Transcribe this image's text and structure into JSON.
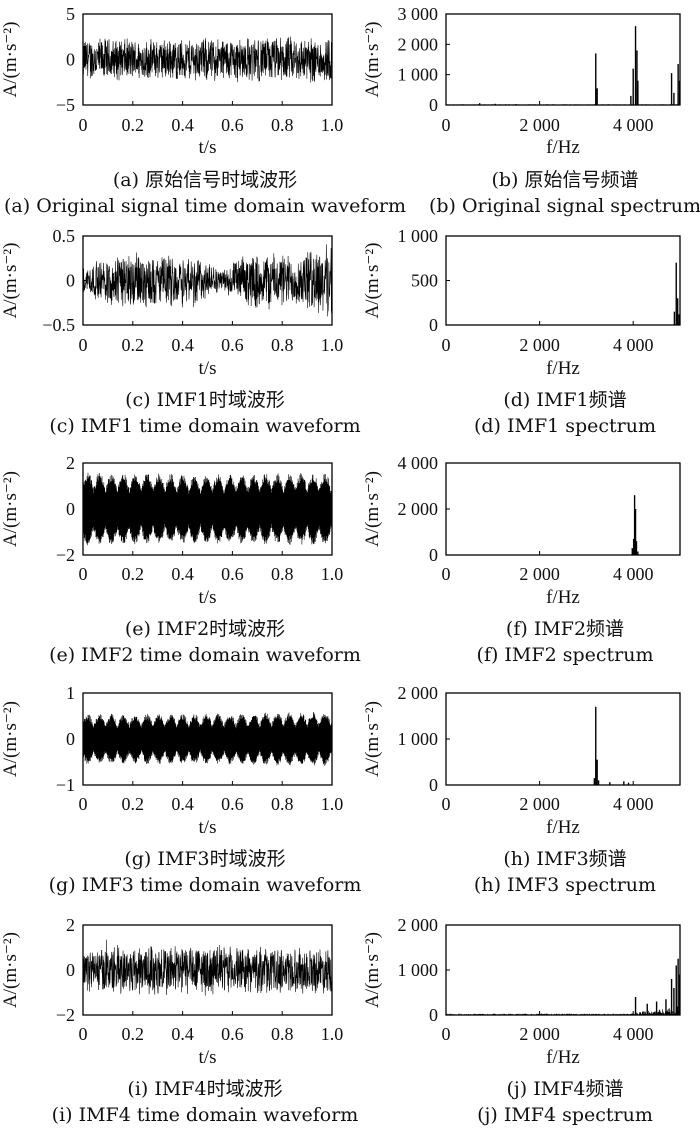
{
  "chart_data": [
    {
      "id": "a",
      "type": "line",
      "domain": "time",
      "xlabel": "t/s",
      "ylabel": "A/(m·s⁻²)",
      "xlim": [
        0,
        1
      ],
      "ylim": [
        -5,
        5
      ],
      "xticks": [
        0,
        0.2,
        0.4,
        0.6,
        0.8,
        1.0
      ],
      "xtick_labels": [
        "0",
        "0.2",
        "0.4",
        "0.6",
        "0.8",
        "1.0"
      ],
      "yticks": [
        -5,
        0,
        5
      ],
      "ytick_labels": [
        "−5",
        "0",
        "5"
      ],
      "series": [
        {
          "envelope": [
            [
              0,
              2.6
            ],
            [
              0.25,
              2.4
            ],
            [
              0.5,
              2.6
            ],
            [
              0.75,
              2.7
            ],
            [
              1.0,
              2.8
            ]
          ],
          "style": "noise"
        }
      ],
      "caption_zh": "(a) 原始信号时域波形",
      "caption_en": "(a) Original signal time domain waveform"
    },
    {
      "id": "b",
      "type": "bar",
      "domain": "frequency",
      "xlabel": "f/Hz",
      "ylabel": "A/(m·s⁻²)",
      "xlim": [
        0,
        5000
      ],
      "ylim": [
        0,
        3000
      ],
      "xticks": [
        0,
        2000,
        4000
      ],
      "xtick_labels": [
        "0",
        "2 000",
        "4 000"
      ],
      "yticks": [
        0,
        1000,
        2000,
        3000
      ],
      "ytick_labels": [
        "0",
        "1 000",
        "2 000",
        "3 000"
      ],
      "series": [
        {
          "peaks": [
            [
              720,
              60
            ],
            [
              1050,
              40
            ],
            [
              1500,
              30
            ],
            [
              3200,
              1700
            ],
            [
              3230,
              550
            ],
            [
              3950,
              300
            ],
            [
              4000,
              1200
            ],
            [
              4050,
              2600
            ],
            [
              4080,
              1800
            ],
            [
              4100,
              800
            ],
            [
              4820,
              1050
            ],
            [
              4870,
              400
            ],
            [
              4960,
              1350
            ],
            [
              4990,
              800
            ]
          ],
          "noise_floor": 25
        }
      ],
      "caption_zh": "(b) 原始信号频谱",
      "caption_en": "(b) Original signal spectrum"
    },
    {
      "id": "c",
      "type": "line",
      "domain": "time",
      "xlabel": "t/s",
      "ylabel": "A/(m·s⁻²)",
      "xlim": [
        0,
        1
      ],
      "ylim": [
        -0.5,
        0.5
      ],
      "xticks": [
        0,
        0.2,
        0.4,
        0.6,
        0.8,
        1.0
      ],
      "xtick_labels": [
        "0",
        "0.2",
        "0.4",
        "0.6",
        "0.8",
        "1.0"
      ],
      "yticks": [
        -0.5,
        0,
        0.5
      ],
      "ytick_labels": [
        "−0.5",
        "0",
        "0.5"
      ],
      "series": [
        {
          "envelope": [
            [
              0,
              0.15
            ],
            [
              0.1,
              0.3
            ],
            [
              0.2,
              0.35
            ],
            [
              0.3,
              0.3
            ],
            [
              0.45,
              0.33
            ],
            [
              0.55,
              0.12
            ],
            [
              0.65,
              0.3
            ],
            [
              0.75,
              0.35
            ],
            [
              0.85,
              0.3
            ],
            [
              0.95,
              0.42
            ],
            [
              1.0,
              0.45
            ]
          ],
          "style": "noise"
        }
      ],
      "caption_zh": "(c) IMF1时域波形",
      "caption_en": "(c) IMF1 time domain waveform"
    },
    {
      "id": "d",
      "type": "bar",
      "domain": "frequency",
      "xlabel": "f/Hz",
      "ylabel": "A/(m·s⁻²)",
      "xlim": [
        0,
        5000
      ],
      "ylim": [
        0,
        1000
      ],
      "xticks": [
        0,
        2000,
        4000
      ],
      "xtick_labels": [
        "0",
        "2 000",
        "4 000"
      ],
      "yticks": [
        0,
        500,
        1000
      ],
      "ytick_labels": [
        "0",
        "500",
        "1 000"
      ],
      "series": [
        {
          "peaks": [
            [
              4880,
              150
            ],
            [
              4920,
              700
            ],
            [
              4950,
              300
            ],
            [
              4980,
              120
            ]
          ],
          "noise_floor": 3
        }
      ],
      "caption_zh": "(d) IMF1频谱",
      "caption_en": "(d) IMF1 spectrum"
    },
    {
      "id": "e",
      "type": "line",
      "domain": "time",
      "xlabel": "t/s",
      "ylabel": "A/(m·s⁻²)",
      "xlim": [
        0,
        1
      ],
      "ylim": [
        -2,
        2
      ],
      "xticks": [
        0,
        0.2,
        0.4,
        0.6,
        0.8,
        1.0
      ],
      "xtick_labels": [
        "0",
        "0.2",
        "0.4",
        "0.6",
        "0.8",
        "1.0"
      ],
      "yticks": [
        -2,
        0,
        2
      ],
      "ytick_labels": [
        "−2",
        "0",
        "2"
      ],
      "series": [
        {
          "envelope": [
            [
              0,
              1.6
            ],
            [
              0.5,
              1.5
            ],
            [
              1.0,
              1.6
            ]
          ],
          "style": "beat"
        }
      ],
      "caption_zh": "(e) IMF2时域波形",
      "caption_en": "(e) IMF2 time domain waveform"
    },
    {
      "id": "f",
      "type": "bar",
      "domain": "frequency",
      "xlabel": "f/Hz",
      "ylabel": "A/(m·s⁻²)",
      "xlim": [
        0,
        5000
      ],
      "ylim": [
        0,
        4000
      ],
      "xticks": [
        0,
        2000,
        4000
      ],
      "xtick_labels": [
        "0",
        "2 000",
        "4 000"
      ],
      "yticks": [
        0,
        2000,
        4000
      ],
      "ytick_labels": [
        "0",
        "2 000",
        "4 000"
      ],
      "series": [
        {
          "peaks": [
            [
              3980,
              300
            ],
            [
              4010,
              700
            ],
            [
              4030,
              2600
            ],
            [
              4050,
              2000
            ],
            [
              4070,
              600
            ],
            [
              4100,
              150
            ]
          ],
          "noise_floor": 4
        }
      ],
      "caption_zh": "(f) IMF2频谱",
      "caption_en": "(f) IMF2 spectrum"
    },
    {
      "id": "g",
      "type": "line",
      "domain": "time",
      "xlabel": "t/s",
      "ylabel": "A/(m·s⁻²)",
      "xlim": [
        0,
        1
      ],
      "ylim": [
        -1,
        1
      ],
      "xticks": [
        0,
        0.2,
        0.4,
        0.6,
        0.8,
        1.0
      ],
      "xtick_labels": [
        "0",
        "0.2",
        "0.4",
        "0.6",
        "0.8",
        "1.0"
      ],
      "yticks": [
        -1,
        0,
        1
      ],
      "ytick_labels": [
        "−1",
        "0",
        "1"
      ],
      "series": [
        {
          "envelope": [
            [
              0,
              0.55
            ],
            [
              0.5,
              0.55
            ],
            [
              1.0,
              0.6
            ]
          ],
          "style": "beat"
        }
      ],
      "caption_zh": "(g) IMF3时域波形",
      "caption_en": "(g) IMF3 time domain waveform"
    },
    {
      "id": "h",
      "type": "bar",
      "domain": "frequency",
      "xlabel": "f/Hz",
      "ylabel": "A/(m·s⁻²)",
      "xlim": [
        0,
        5000
      ],
      "ylim": [
        0,
        2000
      ],
      "xticks": [
        0,
        2000,
        4000
      ],
      "xtick_labels": [
        "0",
        "2 000",
        "4 000"
      ],
      "yticks": [
        0,
        1000,
        2000
      ],
      "ytick_labels": [
        "0",
        "1 000",
        "2 000"
      ],
      "series": [
        {
          "peaks": [
            [
              3170,
              150
            ],
            [
              3200,
              1700
            ],
            [
              3230,
              550
            ],
            [
              3260,
              100
            ],
            [
              3500,
              60
            ],
            [
              3800,
              80
            ],
            [
              3900,
              50
            ]
          ],
          "noise_floor": 8
        }
      ],
      "caption_zh": "(h) IMF3频谱",
      "caption_en": "(h) IMF3 spectrum"
    },
    {
      "id": "i",
      "type": "line",
      "domain": "time",
      "xlabel": "t/s",
      "ylabel": "A/(m·s⁻²)",
      "xlim": [
        0,
        1
      ],
      "ylim": [
        -2,
        2
      ],
      "xticks": [
        0,
        0.2,
        0.4,
        0.6,
        0.8,
        1.0
      ],
      "xtick_labels": [
        "0",
        "0.2",
        "0.4",
        "0.6",
        "0.8",
        "1.0"
      ],
      "yticks": [
        -2,
        0,
        2
      ],
      "ytick_labels": [
        "−2",
        "0",
        "2"
      ],
      "series": [
        {
          "envelope": [
            [
              0,
              1.0
            ],
            [
              0.3,
              1.3
            ],
            [
              0.6,
              1.1
            ],
            [
              1.0,
              1.1
            ]
          ],
          "style": "noise"
        }
      ],
      "caption_zh": "(i) IMF4时域波形",
      "caption_en": "(i) IMF4 time domain waveform"
    },
    {
      "id": "j",
      "type": "bar",
      "domain": "frequency",
      "xlabel": "f/Hz",
      "ylabel": "A/(m·s⁻²)",
      "xlim": [
        0,
        5000
      ],
      "ylim": [
        0,
        2000
      ],
      "xticks": [
        0,
        2000,
        4000
      ],
      "xtick_labels": [
        "0",
        "2 000",
        "4 000"
      ],
      "yticks": [
        0,
        1000,
        2000
      ],
      "ytick_labels": [
        "0",
        "1 000",
        "2 000"
      ],
      "series": [
        {
          "peaks": [
            [
              4050,
              400
            ],
            [
              4300,
              250
            ],
            [
              4500,
              300
            ],
            [
              4700,
              350
            ],
            [
              4820,
              800
            ],
            [
              4870,
              600
            ],
            [
              4920,
              1100
            ],
            [
              4960,
              1250
            ],
            [
              4990,
              900
            ]
          ],
          "noise_floor": 30,
          "ramp": true
        }
      ],
      "caption_zh": "(j) IMF4频谱",
      "caption_en": "(j) IMF4 spectrum"
    }
  ]
}
